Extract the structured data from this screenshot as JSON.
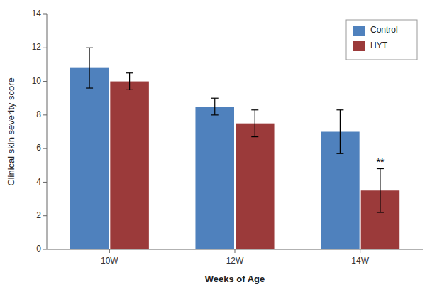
{
  "chart_data": {
    "type": "bar",
    "categories": [
      "10W",
      "12W",
      "14W"
    ],
    "series": [
      {
        "name": "Control",
        "color": "#4F81BD",
        "values": [
          10.8,
          8.5,
          7.0
        ],
        "errors": [
          1.2,
          0.5,
          1.3
        ]
      },
      {
        "name": "HYT",
        "color": "#9B3A3A",
        "values": [
          10.0,
          7.5,
          3.5
        ],
        "errors": [
          0.5,
          0.8,
          1.3
        ]
      }
    ],
    "xlabel": "Weeks of Age",
    "ylabel": "Clinical skin severity score",
    "ylim": [
      0,
      14
    ],
    "yticks": [
      0,
      2,
      4,
      6,
      8,
      10,
      12,
      14
    ],
    "annotations": [
      {
        "text": "**",
        "category": "14W",
        "series": "HYT"
      }
    ],
    "legend": "upper right",
    "grid": false
  }
}
